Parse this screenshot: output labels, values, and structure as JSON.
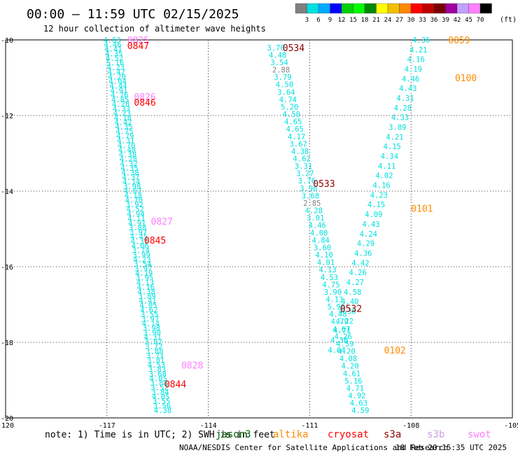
{
  "header": {
    "title": "00:00 – 11:59 UTC 02/15/2025",
    "subtitle": "12 hour collection of altimeter wave heights"
  },
  "colorbar": {
    "colors": [
      "#7f7f7f",
      "#00e0e0",
      "#00aaff",
      "#0000ff",
      "#00d000",
      "#00ff00",
      "#008800",
      "#ffff00",
      "#f0c000",
      "#ff8800",
      "#ff0000",
      "#c00000",
      "#7a0000",
      "#a000a0",
      "#c0a0ff",
      "#ff80ff",
      "#000000"
    ],
    "tick_labels": [
      "3",
      "6",
      "9",
      "12",
      "15",
      "18",
      "21",
      "24",
      "27",
      "30",
      "33",
      "36",
      "39",
      "42",
      "45",
      "70"
    ],
    "unit": "(ft)"
  },
  "footer": {
    "note": "note:  1) Time is in UTC;  2) SWH is in feet",
    "satellites": [
      {
        "name": "jason3",
        "color": "#006400"
      },
      {
        "name": "altika",
        "color": "#ff8c00"
      },
      {
        "name": "cryosat",
        "color": "#ff0000"
      },
      {
        "name": "s3a",
        "color": "#8b0000"
      },
      {
        "name": "s3b",
        "color": "#c8a0e0"
      },
      {
        "name": "swot",
        "color": "#ff80ff"
      }
    ],
    "credit": "NOAA/NESDIS Center for Satellite Applications and Research",
    "timestamp": "18 Feb 20:15:35 UTC 2025"
  },
  "chart_data": {
    "type": "scatter",
    "title": "00:00 – 11:59 UTC 02/15/2025",
    "subtitle": "12 hour collection of altimeter wave heights",
    "xlim": [
      -120,
      -105
    ],
    "ylim": [
      -20,
      -10
    ],
    "xticks": [
      -120,
      -117,
      -114,
      -111,
      -108,
      -105
    ],
    "xtick_labels": [
      "-120",
      "-117",
      "-114",
      "-111",
      "-108",
      "-105"
    ],
    "yticks": [
      -10,
      -12,
      -14,
      -16,
      -18,
      -20
    ],
    "ytick_labels": [
      "-10",
      "-12",
      "-14",
      "-16",
      "-18",
      "-20"
    ],
    "grid": true,
    "point_color": "#00e0e0",
    "low_color": "#808080",
    "tracks": [
      {
        "name": "track-a",
        "values": [
          "4.63",
          "4.46",
          "4.41",
          "4.35",
          "4.52",
          "5.16",
          "4.23",
          "4.42",
          "4.20",
          "4.04",
          "4.44",
          "4.91",
          "4.76",
          "4.85",
          "4.28",
          "4.33",
          "4.23",
          "4.18",
          "4.42",
          "4.35",
          "4.75",
          "4.79",
          "4.31",
          "4.70",
          "4.48",
          "4.38",
          "4.28",
          "4.32",
          "4.35",
          "4.38",
          "4.37",
          "4.14",
          "3.98",
          "4.07",
          "4.18",
          "4.70",
          "3.92",
          "4.52",
          "4.94",
          "4.11",
          "4.91",
          "3.88",
          "3.97",
          "4.45",
          "4.31",
          "4.06",
          "3.74",
          "3.99",
          "4.23",
          "3.54",
          "3.97",
          "4.19",
          "3.95",
          "4.13",
          "4.16",
          "4.38",
          "3.89",
          "4.41",
          "4.05",
          "4.62",
          "3.55",
          "3.97",
          "4.14",
          "3.98",
          "3.90",
          "4.31",
          "3.82",
          "3.72",
          "3.88",
          "3.71",
          "3.81",
          "4.53",
          "3.83",
          "3.68",
          "4.05",
          "3.88",
          "3.52",
          "3.84",
          "4.05",
          "3.55",
          "3.56",
          "4.38"
        ],
        "lat_start": -10.0,
        "lat_end": -19.8,
        "lon_start": -116.85,
        "lon_end": -115.35
      },
      {
        "name": "track-b",
        "values": [
          "3.70",
          "4.48",
          "3.54",
          "2.88",
          "3.79",
          "4.50",
          "3.64",
          "4.74",
          "5.20",
          "4.50",
          "4.65",
          "4.65",
          "4.17",
          "3.67",
          "4.38",
          "4.62",
          "3.31",
          "3.27",
          "3.76",
          "3.96",
          "3.68",
          "2.85",
          "4.28",
          "3.01",
          "4.46",
          "4.00",
          "4.84",
          "3.60",
          "4.10",
          "4.01",
          "4.13",
          "4.53",
          "4.75",
          "3.90",
          "4.13",
          "5.96",
          "4.48",
          "4.79",
          "4.67",
          "4.26",
          "4.59",
          "4.20",
          "4.08",
          "4.20",
          "4.61",
          "5.16",
          "4.71",
          "4.92",
          "4.63",
          "4.59"
        ],
        "lat_start": -10.2,
        "lat_end": -19.8,
        "lon_start": -112.0,
        "lon_end": -109.5
      },
      {
        "name": "track-c",
        "values": [
          "4.36",
          "4.21",
          "4.16",
          "4.19",
          "4.46",
          "4.43",
          "4.31",
          "4.28",
          "4.33",
          "3.89",
          "4.21",
          "4.15",
          "4.34",
          "4.11",
          "4.02",
          "4.16",
          "4.23",
          "4.15",
          "4.09",
          "4.43",
          "4.24",
          "4.29",
          "4.36",
          "4.42",
          "4.26",
          "4.27",
          "4.58",
          "4.40",
          "4.36",
          "4.22",
          "4.71",
          "4.30",
          "4.64"
        ],
        "lat_start": -10.0,
        "lat_end": -18.2,
        "lon_start": -107.7,
        "lon_end": -110.2
      }
    ],
    "time_labels": [
      {
        "text": "0825",
        "lon": -116.4,
        "lat": -10.0,
        "color": "#ff80ff"
      },
      {
        "text": "0847",
        "lon": -116.4,
        "lat": -10.15,
        "color": "#ff0000"
      },
      {
        "text": "0826",
        "lon": -116.2,
        "lat": -11.5,
        "color": "#ff80ff"
      },
      {
        "text": "0846",
        "lon": -116.2,
        "lat": -11.65,
        "color": "#ff0000"
      },
      {
        "text": "0827",
        "lon": -115.7,
        "lat": -14.8,
        "color": "#ff80ff"
      },
      {
        "text": "0845",
        "lon": -115.9,
        "lat": -15.3,
        "color": "#ff0000"
      },
      {
        "text": "0828",
        "lon": -114.8,
        "lat": -18.6,
        "color": "#ff80ff"
      },
      {
        "text": "0844",
        "lon": -115.3,
        "lat": -19.1,
        "color": "#ff0000"
      },
      {
        "text": "0534",
        "lon": -111.8,
        "lat": -10.2,
        "color": "#8b0000"
      },
      {
        "text": "0533",
        "lon": -110.9,
        "lat": -13.8,
        "color": "#8b0000"
      },
      {
        "text": "0532",
        "lon": -110.1,
        "lat": -17.1,
        "color": "#8b0000"
      },
      {
        "text": "0059",
        "lon": -106.9,
        "lat": -10.0,
        "color": "#ff8c00"
      },
      {
        "text": "0100",
        "lon": -106.7,
        "lat": -11.0,
        "color": "#ff8c00"
      },
      {
        "text": "0101",
        "lon": -108.0,
        "lat": -14.45,
        "color": "#ff8c00"
      },
      {
        "text": "0102",
        "lon": -108.8,
        "lat": -18.2,
        "color": "#ff8c00"
      }
    ]
  }
}
